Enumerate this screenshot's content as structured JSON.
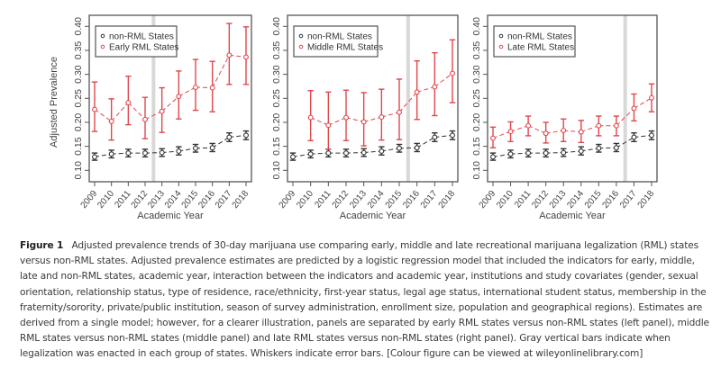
{
  "chart_data": [
    {
      "type": "line",
      "panel": "left",
      "title": "",
      "xlabel": "Academic Year",
      "ylabel": "Adjusted Prevalence",
      "ylim": [
        0.075,
        0.42
      ],
      "yticks": [
        "0.10",
        "0.15",
        "0.20",
        "0.25",
        "0.30",
        "0.35",
        "0.40"
      ],
      "x": [
        "2009",
        "2010",
        "2011",
        "2012",
        "2013",
        "2014",
        "2015",
        "2016",
        "2017",
        "2018"
      ],
      "legalization_marker_between": [
        "2012",
        "2013"
      ],
      "legend": {
        "placement": "top-left",
        "entries": [
          "non-RML States",
          "Early RML States"
        ]
      },
      "series": [
        {
          "name": "non-RML States",
          "color": "#333333",
          "values": [
            0.128,
            0.134,
            0.136,
            0.136,
            0.137,
            0.14,
            0.146,
            0.147,
            0.169,
            0.173
          ],
          "lower": [
            0.121,
            0.126,
            0.128,
            0.128,
            0.129,
            0.132,
            0.138,
            0.139,
            0.16,
            0.164
          ],
          "upper": [
            0.136,
            0.142,
            0.144,
            0.144,
            0.145,
            0.149,
            0.154,
            0.156,
            0.178,
            0.182
          ]
        },
        {
          "name": "Early RML States",
          "color": "#e0474c",
          "values": [
            0.227,
            0.202,
            0.241,
            0.206,
            0.223,
            0.254,
            0.273,
            0.272,
            0.34,
            0.336
          ],
          "lower": [
            0.181,
            0.163,
            0.195,
            0.166,
            0.179,
            0.207,
            0.225,
            0.222,
            0.279,
            0.279
          ],
          "upper": [
            0.284,
            0.249,
            0.296,
            0.252,
            0.272,
            0.307,
            0.331,
            0.327,
            0.406,
            0.399
          ]
        }
      ]
    },
    {
      "type": "line",
      "panel": "middle",
      "title": "",
      "xlabel": "Academic Year",
      "ylabel": "",
      "ylim": [
        0.075,
        0.42
      ],
      "yticks": [
        "0.10",
        "0.15",
        "0.20",
        "0.25",
        "0.30",
        "0.35",
        "0.40"
      ],
      "x": [
        "2009",
        "2010",
        "2011",
        "2012",
        "2013",
        "2014",
        "2015",
        "2016",
        "2017",
        "2018"
      ],
      "legalization_marker_between": [
        "2015",
        "2016"
      ],
      "legend": {
        "placement": "top-left",
        "entries": [
          "non-RML States",
          "Middle RML States"
        ]
      },
      "series": [
        {
          "name": "non-RML States",
          "color": "#333333",
          "values": [
            0.128,
            0.134,
            0.136,
            0.136,
            0.137,
            0.14,
            0.146,
            0.147,
            0.169,
            0.173
          ],
          "lower": [
            0.121,
            0.126,
            0.128,
            0.128,
            0.129,
            0.132,
            0.138,
            0.139,
            0.16,
            0.164
          ],
          "upper": [
            0.136,
            0.142,
            0.144,
            0.144,
            0.145,
            0.149,
            0.154,
            0.156,
            0.178,
            0.182
          ]
        },
        {
          "name": "Middle RML States",
          "color": "#e0474c",
          "values": [
            null,
            0.21,
            0.194,
            0.21,
            0.201,
            0.211,
            0.221,
            0.263,
            0.274,
            0.302
          ],
          "lower": [
            null,
            0.162,
            0.144,
            0.162,
            0.151,
            0.163,
            0.164,
            0.206,
            0.214,
            0.241
          ],
          "upper": [
            null,
            0.266,
            0.263,
            0.267,
            0.262,
            0.269,
            0.29,
            0.328,
            0.345,
            0.372
          ]
        }
      ]
    },
    {
      "type": "line",
      "panel": "right",
      "title": "",
      "xlabel": "Academic Year",
      "ylabel": "",
      "ylim": [
        0.075,
        0.42
      ],
      "yticks": [
        "0.10",
        "0.15",
        "0.20",
        "0.25",
        "0.30",
        "0.35",
        "0.40"
      ],
      "x": [
        "2009",
        "2010",
        "2011",
        "2012",
        "2013",
        "2014",
        "2015",
        "2016",
        "2017",
        "2018"
      ],
      "legalization_marker_between": [
        "2016",
        "2017"
      ],
      "legend": {
        "placement": "top-left",
        "entries": [
          "non-RML States",
          "Late RML States"
        ]
      },
      "series": [
        {
          "name": "non-RML States",
          "color": "#333333",
          "values": [
            0.128,
            0.134,
            0.136,
            0.136,
            0.137,
            0.14,
            0.146,
            0.147,
            0.169,
            0.173
          ],
          "lower": [
            0.121,
            0.126,
            0.128,
            0.128,
            0.129,
            0.132,
            0.138,
            0.139,
            0.16,
            0.164
          ],
          "upper": [
            0.136,
            0.142,
            0.144,
            0.144,
            0.145,
            0.149,
            0.154,
            0.156,
            0.178,
            0.182
          ]
        },
        {
          "name": "Late RML States",
          "color": "#e0474c",
          "values": [
            0.167,
            0.181,
            0.193,
            0.177,
            0.183,
            0.18,
            0.193,
            0.193,
            0.229,
            0.251
          ],
          "lower": [
            0.147,
            0.16,
            0.172,
            0.157,
            0.16,
            0.158,
            0.172,
            0.172,
            0.203,
            0.222
          ],
          "upper": [
            0.19,
            0.201,
            0.213,
            0.2,
            0.207,
            0.204,
            0.213,
            0.213,
            0.259,
            0.28
          ]
        }
      ]
    }
  ],
  "caption": {
    "label": "Figure 1",
    "text": "Adjusted prevalence trends of 30-day marijuana use comparing early, middle and late recreational marijuana legalization (RML) states versus non-RML states. Adjusted prevalence estimates are predicted by a logistic regression model that included the indicators for early, middle, late and non-RML states, academic year, interaction between the indicators and academic year, institutions and study covariates (gender, sexual orientation, relationship status, type of residence, race/ethnicity, first-year status, legal age status, international student status, membership in the fraternity/sorority, private/public institution, season of survey administration, enrollment size, population and geographical regions). Estimates are derived from a single model; however, for a clearer illustration, panels are separated by early RML states versus non-RML states (left panel), middle RML states versus non-RML states (middle panel) and late RML states versus non-RML states (right panel). Gray vertical bars indicate when legalization was enacted in each group of states. Whiskers indicate error bars. [Colour figure can be viewed at wileyonlinelibrary.com]"
  }
}
